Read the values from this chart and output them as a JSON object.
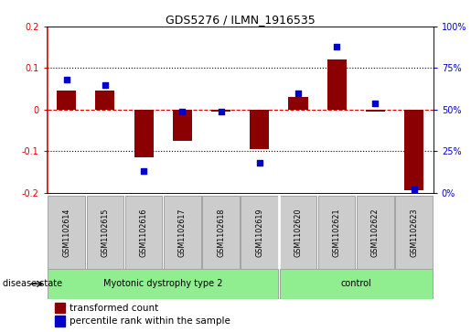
{
  "title": "GDS5276 / ILMN_1916535",
  "samples": [
    "GSM1102614",
    "GSM1102615",
    "GSM1102616",
    "GSM1102617",
    "GSM1102618",
    "GSM1102619",
    "GSM1102620",
    "GSM1102621",
    "GSM1102622",
    "GSM1102623"
  ],
  "red_values": [
    0.045,
    0.045,
    -0.115,
    -0.075,
    -0.005,
    -0.095,
    0.03,
    0.12,
    -0.005,
    -0.195
  ],
  "blue_values": [
    68,
    65,
    13,
    49,
    49,
    18,
    60,
    88,
    54,
    2
  ],
  "groups": [
    {
      "label": "Myotonic dystrophy type 2",
      "start": 0,
      "end": 5,
      "color": "#90EE90"
    },
    {
      "label": "control",
      "start": 6,
      "end": 9,
      "color": "#90EE90"
    }
  ],
  "ylim_left": [
    -0.2,
    0.2
  ],
  "ylim_right": [
    0,
    100
  ],
  "yticks_left": [
    -0.2,
    -0.1,
    0.0,
    0.1,
    0.2
  ],
  "ytick_labels_left": [
    "-0.2",
    "-0.1",
    "0",
    "0.1",
    "0.2"
  ],
  "yticks_right": [
    0,
    25,
    50,
    75,
    100
  ],
  "ytick_labels_right": [
    "0%",
    "25%",
    "50%",
    "75%",
    "100%"
  ],
  "red_color": "#8B0000",
  "blue_color": "#0000CC",
  "zero_line_color": "#DD0000",
  "dot_line_color": "black",
  "bg_plot": "white",
  "bg_sample_box": "#CCCCCC",
  "legend_red_label": "transformed count",
  "legend_blue_label": "percentile rank within the sample",
  "disease_state_label": "disease state",
  "bar_width": 0.5
}
